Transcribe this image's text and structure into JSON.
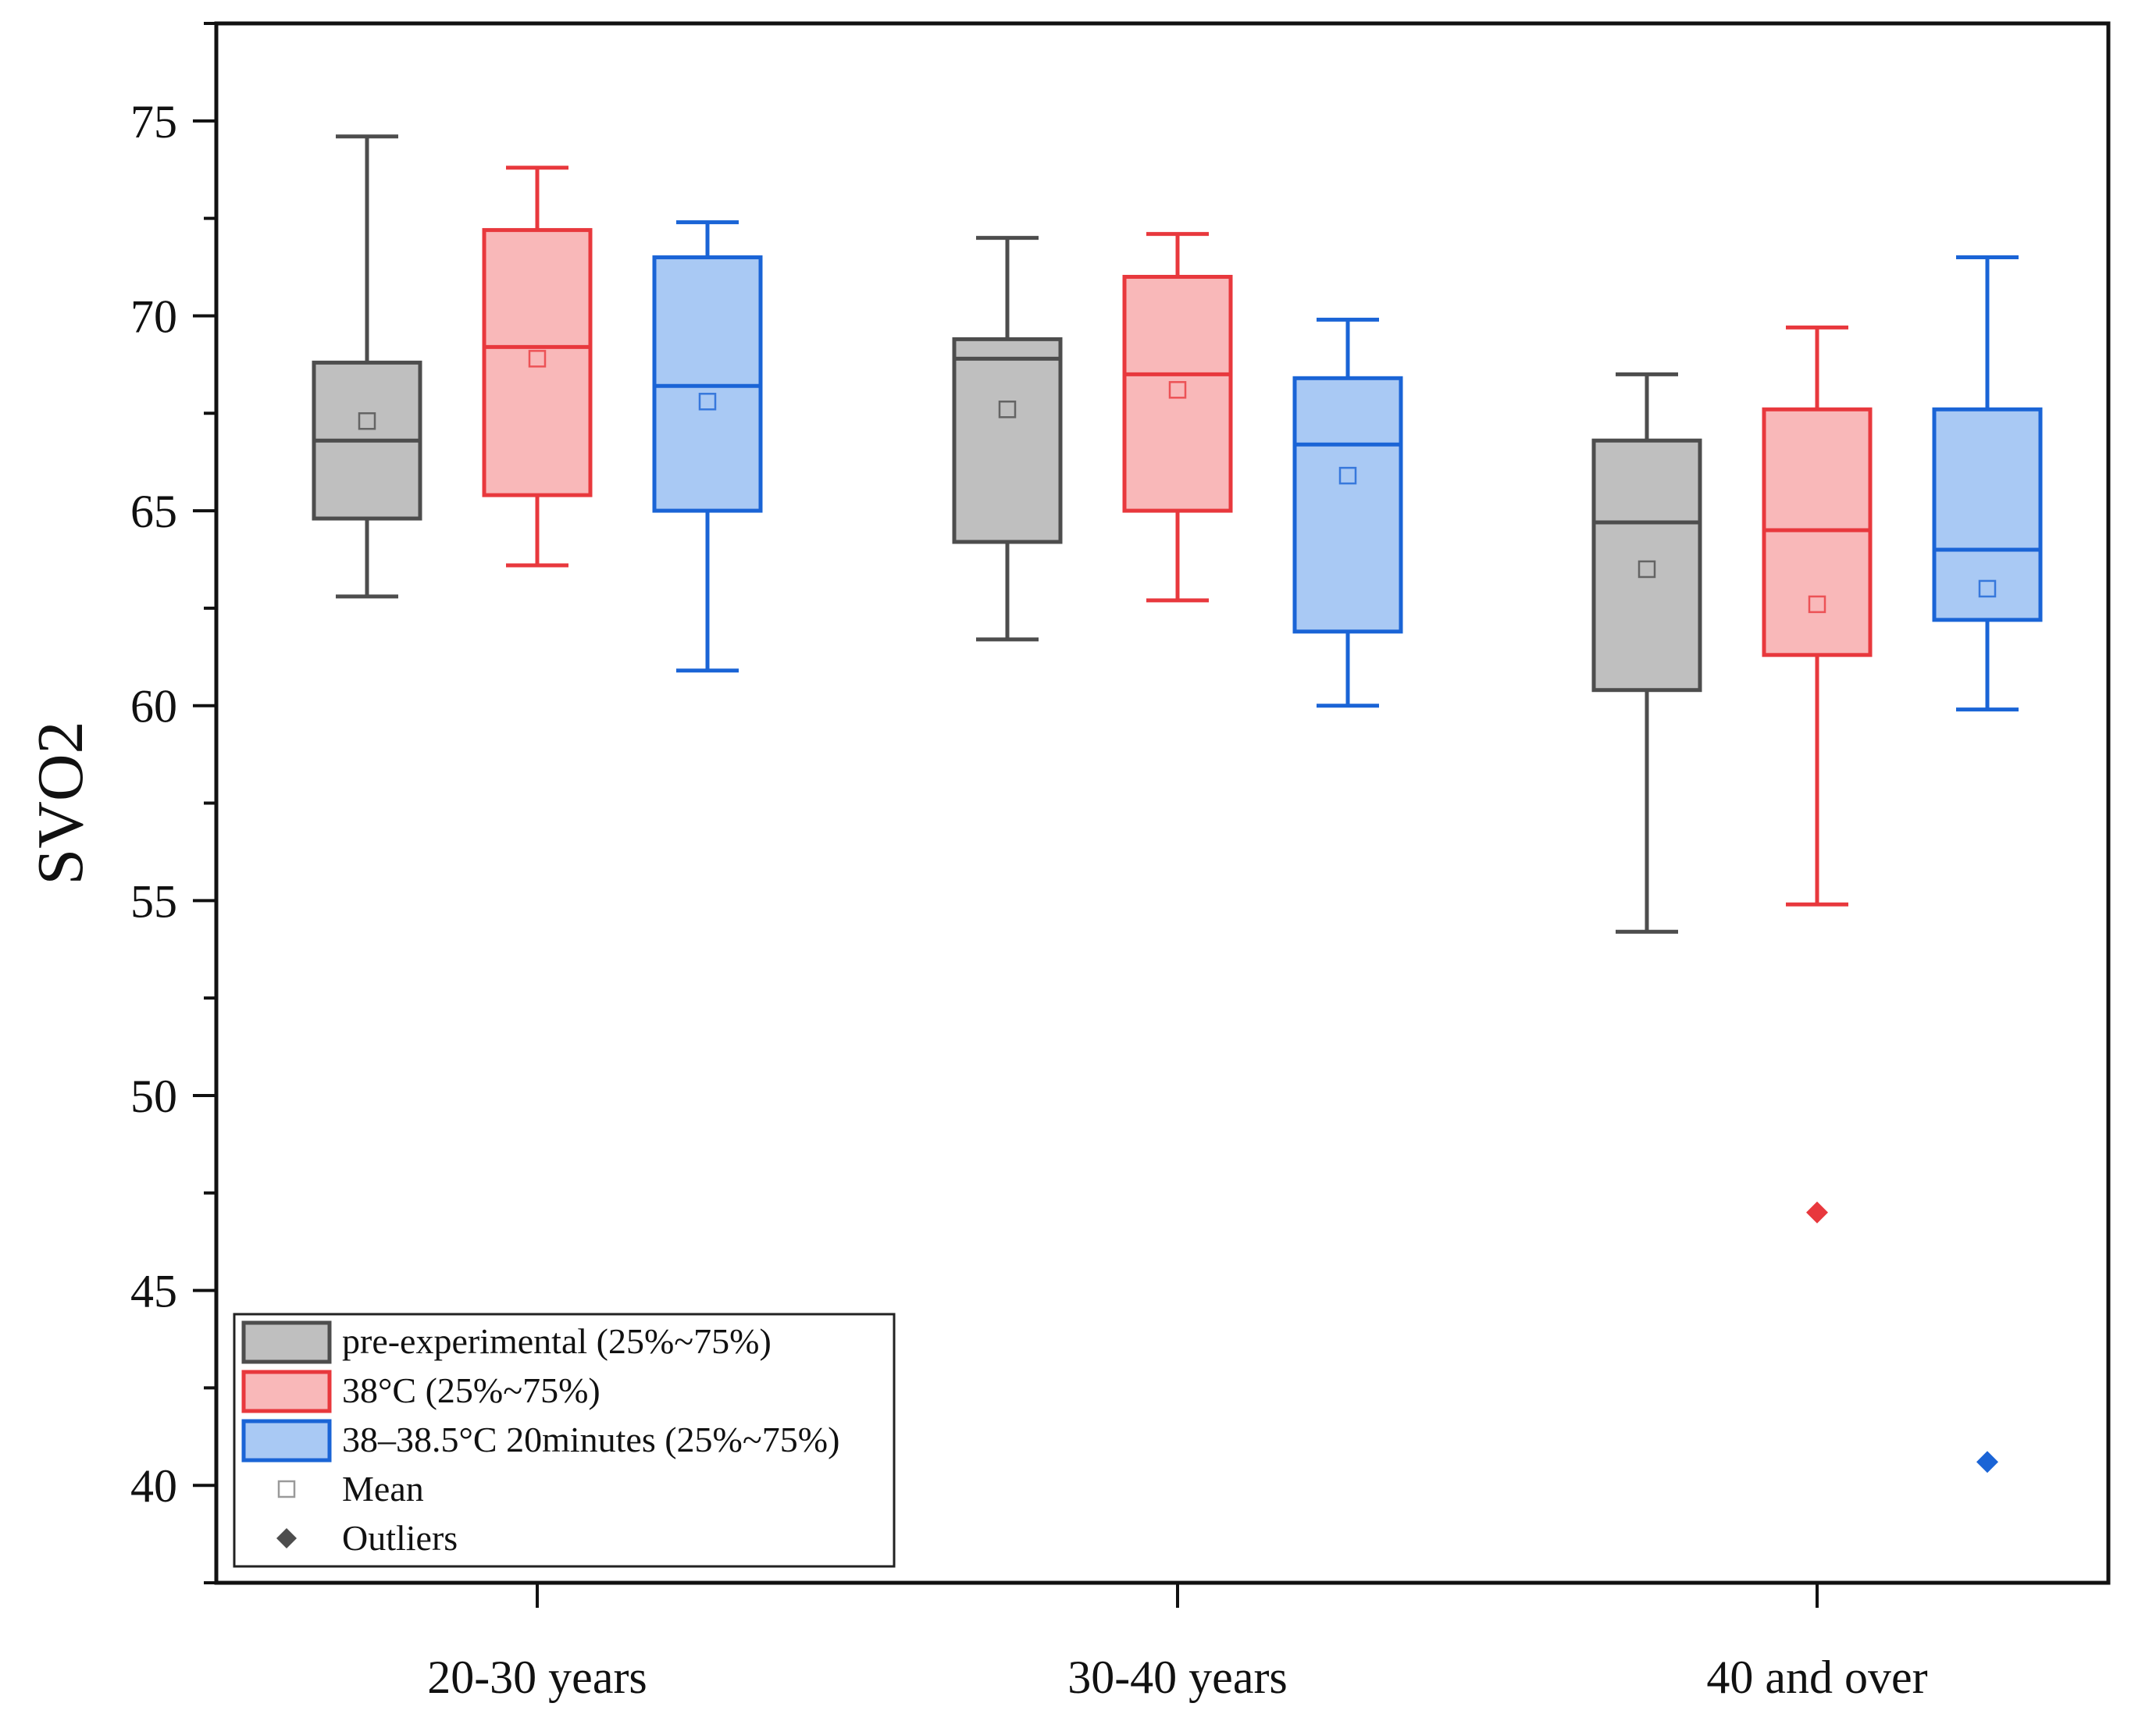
{
  "chart_data": {
    "type": "box",
    "title": "",
    "xlabel": "",
    "ylabel": "SVO2",
    "ylim": [
      37.5,
      77.5
    ],
    "yticks": [
      40,
      45,
      50,
      55,
      60,
      65,
      70,
      75
    ],
    "grid": false,
    "legend_position": "bottom-left",
    "categories": [
      "20-30 years",
      "30-40 years",
      "40 and over"
    ],
    "series": [
      {
        "name": "pre-experimental (25%~75%)",
        "edge_color": "#4d4d4d",
        "fill_color": "#bfbfbf",
        "boxes": [
          {
            "min": 62.8,
            "q1": 64.8,
            "median": 66.8,
            "q3": 68.8,
            "max": 74.6,
            "mean": 67.3,
            "outliers": []
          },
          {
            "min": 61.7,
            "q1": 64.2,
            "median": 68.9,
            "q3": 69.4,
            "max": 72.0,
            "mean": 67.6,
            "outliers": []
          },
          {
            "min": 54.2,
            "q1": 60.4,
            "median": 64.7,
            "q3": 66.8,
            "max": 68.5,
            "mean": 63.5,
            "outliers": []
          }
        ]
      },
      {
        "name": "38°C (25%~75%)",
        "edge_color": "#e8383d",
        "fill_color": "#f9b8b9",
        "boxes": [
          {
            "min": 63.6,
            "q1": 65.4,
            "median": 69.2,
            "q3": 72.2,
            "max": 73.8,
            "mean": 68.9,
            "outliers": []
          },
          {
            "min": 62.7,
            "q1": 65.0,
            "median": 68.5,
            "q3": 71.0,
            "max": 72.1,
            "mean": 68.1,
            "outliers": []
          },
          {
            "min": 54.9,
            "q1": 61.3,
            "median": 64.5,
            "q3": 67.6,
            "max": 69.7,
            "mean": 62.6,
            "outliers": [
              47.0
            ]
          }
        ]
      },
      {
        "name": "38–38.5°C 20minutes (25%~75%)",
        "edge_color": "#1a64d6",
        "fill_color": "#a9c9f4",
        "boxes": [
          {
            "min": 60.9,
            "q1": 65.0,
            "median": 68.2,
            "q3": 71.5,
            "max": 72.4,
            "mean": 67.8,
            "outliers": []
          },
          {
            "min": 60.0,
            "q1": 61.9,
            "median": 66.7,
            "q3": 68.4,
            "max": 69.9,
            "mean": 65.9,
            "outliers": []
          },
          {
            "min": 59.9,
            "q1": 62.2,
            "median": 64.0,
            "q3": 67.6,
            "max": 71.5,
            "mean": 63.0,
            "outliers": [
              40.6
            ]
          }
        ]
      }
    ],
    "legend_extra": [
      {
        "name": "Mean",
        "color": "#9a9a9a"
      },
      {
        "name": "Outliers",
        "color": "#4d4d4d"
      }
    ]
  }
}
